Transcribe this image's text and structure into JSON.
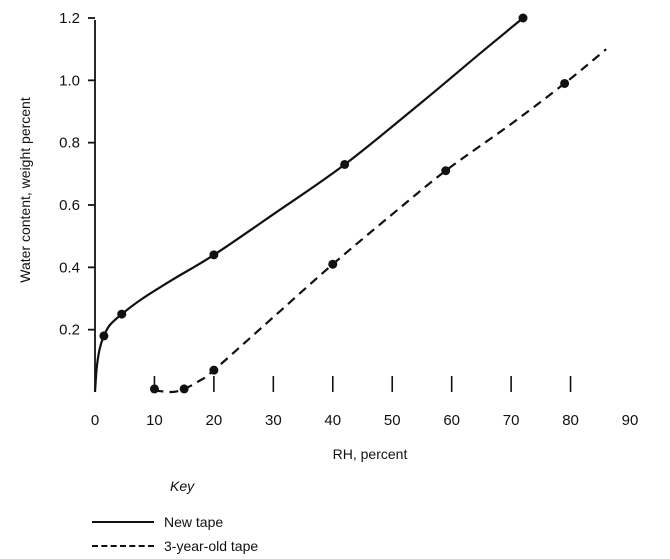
{
  "chart_data": {
    "type": "line",
    "xlabel": "RH, percent",
    "ylabel": "Water content, weight percent",
    "xlim": [
      0,
      90
    ],
    "ylim": [
      0,
      1.2
    ],
    "x_ticks": [
      "0",
      "10",
      "20",
      "30",
      "40",
      "50",
      "60",
      "70",
      "80",
      "90"
    ],
    "y_ticks": [
      "0.2",
      "0.4",
      "0.6",
      "0.8",
      "1.0",
      "1.2"
    ],
    "legend_title": "Key",
    "legend_position": "bottom-left",
    "series": [
      {
        "name": "New tape",
        "style": "solid",
        "color": "#111111",
        "points": [
          [
            1.5,
            0.18
          ],
          [
            4.5,
            0.25
          ],
          [
            20,
            0.44
          ],
          [
            42,
            0.73
          ],
          [
            72,
            1.2
          ]
        ],
        "curve": [
          [
            0,
            0
          ],
          [
            0.3,
            0.08
          ],
          [
            0.8,
            0.14
          ],
          [
            1.5,
            0.18
          ],
          [
            2.5,
            0.215
          ],
          [
            4.5,
            0.25
          ],
          [
            8,
            0.3
          ],
          [
            13,
            0.36
          ],
          [
            20,
            0.44
          ],
          [
            30,
            0.57
          ],
          [
            42,
            0.73
          ],
          [
            55,
            0.93
          ],
          [
            65,
            1.09
          ],
          [
            72,
            1.2
          ]
        ]
      },
      {
        "name": "3-year-old tape",
        "style": "dashed",
        "color": "#111111",
        "points": [
          [
            10,
            0.01
          ],
          [
            15,
            0.01
          ],
          [
            20,
            0.07
          ],
          [
            40,
            0.41
          ],
          [
            59,
            0.71
          ],
          [
            79,
            0.99
          ]
        ],
        "curve": [
          [
            10,
            0.005
          ],
          [
            13,
            0.0
          ],
          [
            15,
            0.01
          ],
          [
            17.5,
            0.035
          ],
          [
            20,
            0.07
          ],
          [
            30,
            0.24
          ],
          [
            40,
            0.41
          ],
          [
            50,
            0.57
          ],
          [
            59,
            0.71
          ],
          [
            70,
            0.86
          ],
          [
            79,
            0.99
          ],
          [
            86,
            1.1
          ]
        ]
      }
    ]
  }
}
